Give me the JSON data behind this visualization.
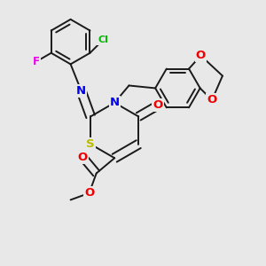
{
  "bg_color": "#e8e8e8",
  "bond_color": "#1a1a1a",
  "bond_width": 1.4,
  "atom_colors": {
    "S": "#bbbb00",
    "N": "#0000ee",
    "O": "#ee0000",
    "Cl": "#00bb00",
    "F": "#ee00ee",
    "C": "#1a1a1a"
  },
  "font_size": 8.5,
  "figsize": [
    3.0,
    3.0
  ],
  "dpi": 100
}
